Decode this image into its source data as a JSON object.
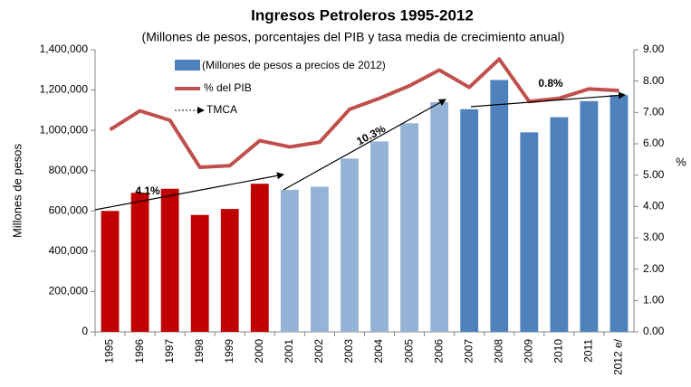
{
  "chart_data": {
    "type": "bar_line",
    "title": "Ingresos Petroleros 1995-2012",
    "subtitle": "(Millones de pesos,  porcentajes del PIB y tasa media de crecimiento  anual)",
    "ylabel": "Millones de pesos",
    "y2label": "%",
    "categories": [
      "1995",
      "1996",
      "1997",
      "1998",
      "1999",
      "2000",
      "2001",
      "2002",
      "2003",
      "2004",
      "2005",
      "2006",
      "2007",
      "2008",
      "2009",
      "2010",
      "2011",
      "2012 e/"
    ],
    "series": [
      {
        "name": "(Millones de pesos a precios de 2012)",
        "type": "bar",
        "colors": [
          "#c00000",
          "#c00000",
          "#c00000",
          "#c00000",
          "#c00000",
          "#c00000",
          "#95b3d7",
          "#95b3d7",
          "#95b3d7",
          "#95b3d7",
          "#95b3d7",
          "#95b3d7",
          "#4f81bd",
          "#4f81bd",
          "#4f81bd",
          "#4f81bd",
          "#4f81bd",
          "#4f81bd"
        ],
        "values": [
          600000,
          690000,
          710000,
          580000,
          610000,
          735000,
          705000,
          720000,
          860000,
          945000,
          1035000,
          1140000,
          1105000,
          1250000,
          990000,
          1065000,
          1145000,
          1175000
        ]
      },
      {
        "name": "% del PIB",
        "type": "line",
        "axis": "y2",
        "color": "#c0504d",
        "values": [
          6.45,
          7.05,
          6.75,
          5.25,
          5.3,
          6.1,
          5.9,
          6.05,
          7.1,
          7.45,
          7.85,
          8.35,
          7.8,
          8.7,
          7.35,
          7.45,
          7.75,
          7.7
        ]
      }
    ],
    "arrow_legend": "TMCA",
    "annotations": [
      "4.1%",
      "10.3%",
      "0.8%"
    ],
    "ylim": [
      0,
      1400000
    ],
    "yticks": [
      0,
      {
        "value": 200000,
        "label": "200,000"
      },
      {
        "value": 400000,
        "label": "400,000"
      },
      {
        "value": 600000,
        "label": "600,000"
      },
      {
        "value": 800000,
        "label": "800,000"
      },
      {
        "value": 1000000,
        "label": "1,000,000"
      },
      {
        "value": 1200000,
        "label": "1,200,000"
      },
      {
        "value": 1400000,
        "label": "1,400,000"
      }
    ],
    "y2lim": [
      0,
      9
    ],
    "y2ticks": [
      {
        "value": 0,
        "label": "0.00"
      },
      {
        "value": 1,
        "label": "1.00"
      },
      {
        "value": 2,
        "label": "2.00"
      },
      {
        "value": 3,
        "label": "3.00"
      },
      {
        "value": 4,
        "label": "4.00"
      },
      {
        "value": 5,
        "label": "5.00"
      },
      {
        "value": 6,
        "label": "6.00"
      },
      {
        "value": 7,
        "label": "7.00"
      },
      {
        "value": 8,
        "label": "8.00"
      },
      {
        "value": 9,
        "label": "9.00"
      }
    ],
    "grid": false
  }
}
